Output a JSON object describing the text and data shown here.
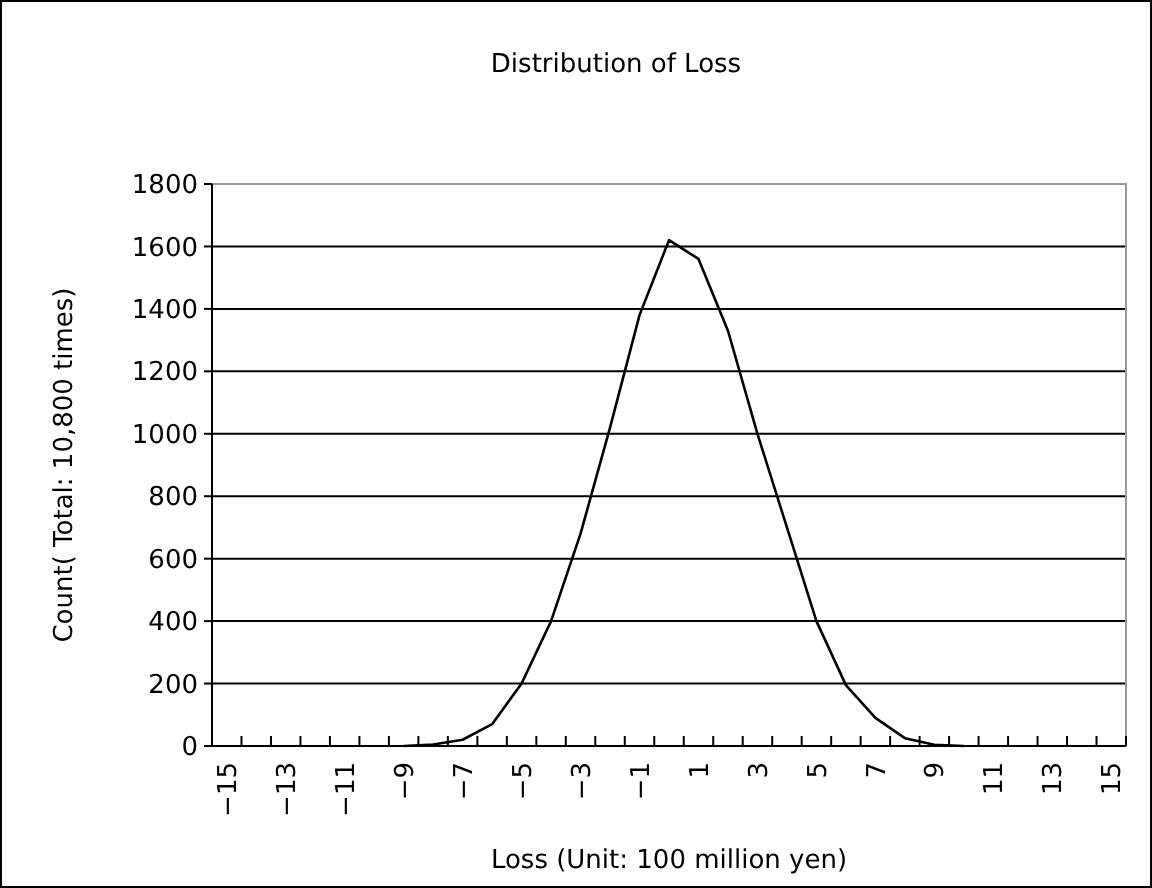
{
  "chart_data": {
    "type": "line",
    "title": "Distribution of Loss",
    "xlabel": "Loss (Unit: 100 million yen)",
    "ylabel": "Count( Total: 10,800 times)",
    "categories": [
      "−15",
      null,
      "−13",
      null,
      "−11",
      null,
      "−9",
      null,
      "−7",
      null,
      "−5",
      null,
      "−3",
      null,
      "−1",
      null,
      "1",
      null,
      "3",
      null,
      "5",
      null,
      "7",
      null,
      "9",
      null,
      "11",
      null,
      "13",
      null,
      "15"
    ],
    "series": [
      {
        "color": "#000000",
        "values": [
          null,
          null,
          null,
          null,
          null,
          null,
          0,
          5,
          20,
          70,
          200,
          400,
          680,
          1020,
          1380,
          1620,
          1560,
          1330,
          1000,
          700,
          400,
          195,
          90,
          25,
          4,
          0,
          null,
          null,
          null,
          null,
          null
        ]
      }
    ],
    "ylim": [
      0,
      1800
    ],
    "yticks": [
      0,
      200,
      400,
      600,
      800,
      1000,
      1200,
      1400,
      1600,
      1800
    ],
    "grid": "y",
    "marker": "none",
    "line_style": "solid"
  }
}
